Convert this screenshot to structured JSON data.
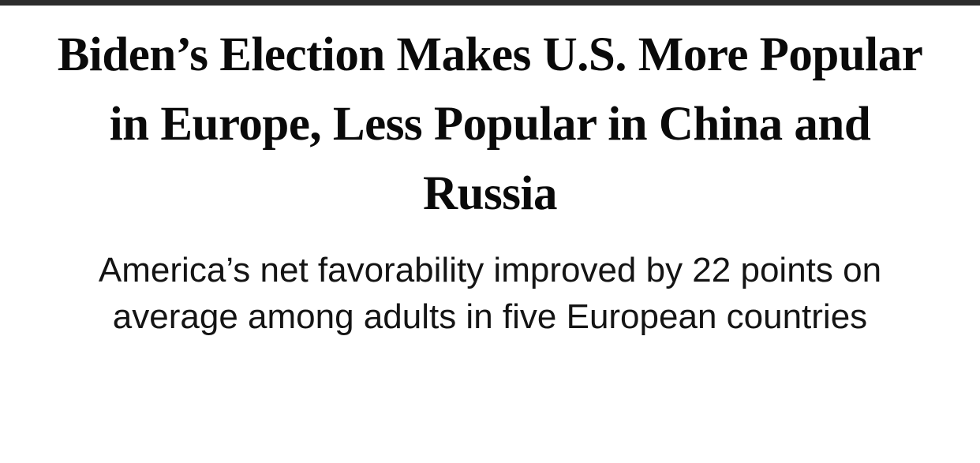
{
  "article": {
    "headline": "Biden’s Election Makes U.S. More Popular in Europe, Less Popular in China and Russia",
    "subheadline": "America’s net favorability improved by 22 points on average among adults in five European countries"
  },
  "colors": {
    "top_bar": "#2d2d2d",
    "text": "#0a0a0a",
    "background": "#ffffff"
  }
}
